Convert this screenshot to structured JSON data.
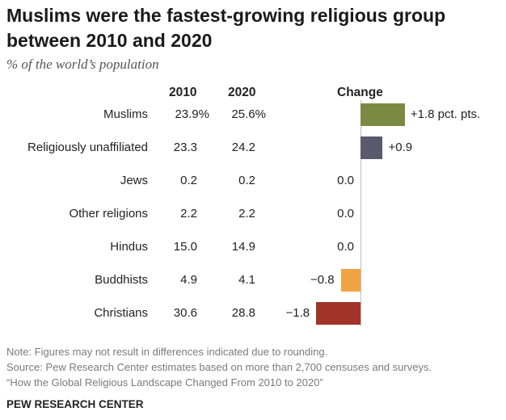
{
  "chart_data": {
    "type": "bar",
    "title_line1": "Muslims were the fastest-growing religious group",
    "title_line2": "between 2010 and 2020",
    "subtitle": "% of the world’s population",
    "columns": {
      "y2010": "2010",
      "y2020": "2020",
      "change": "Change"
    },
    "categories": [
      "Muslims",
      "Religiously unaffiliated",
      "Jews",
      "Other religions",
      "Hindus",
      "Buddhists",
      "Christians"
    ],
    "values_2010": [
      "23.9%",
      "23.3",
      "0.2",
      "2.2",
      "15.0",
      "4.9",
      "30.6"
    ],
    "values_2020": [
      "25.6%",
      "24.2",
      "0.2",
      "2.2",
      "14.9",
      "4.1",
      "28.8"
    ],
    "change": [
      1.8,
      0.9,
      0.0,
      0.0,
      0.0,
      -0.8,
      -1.8
    ],
    "change_labels": [
      "+1.8 pct. pts.",
      "+0.9",
      "0.0",
      "0.0",
      "0.0",
      "−0.8",
      "−1.8"
    ],
    "colors": [
      "#7b8a43",
      "#5a5a6e",
      "#999999",
      "#999999",
      "#999999",
      "#f0a443",
      "#a23328"
    ],
    "xlim": [
      -1.8,
      1.8
    ]
  },
  "notes": {
    "note": "Note: Figures may not result in differences indicated due to rounding.",
    "source": "Source: Pew Research Center estimates based on more than 2,700 censuses and surveys.",
    "report": "“How the Global Religious Landscape Changed From 2010 to 2020”",
    "org": "PEW RESEARCH CENTER"
  }
}
